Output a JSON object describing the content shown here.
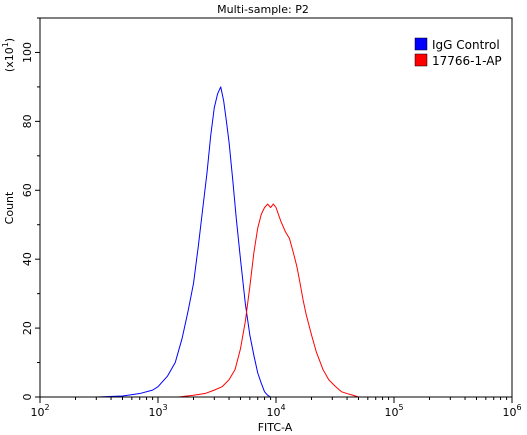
{
  "chart_data": {
    "type": "line",
    "title": "Multi-sample: P2",
    "xlabel": "FITC-A",
    "ylabel": "Count",
    "y_multiplier": "(x10",
    "y_multiplier_exp": "1",
    "y_multiplier_close": ")",
    "x_scale": "log",
    "xlim": [
      100,
      1000000
    ],
    "ylim": [
      0,
      110
    ],
    "x_ticks": [
      {
        "value": 100,
        "base": "10",
        "exp": "2"
      },
      {
        "value": 1000,
        "base": "10",
        "exp": "3"
      },
      {
        "value": 10000,
        "base": "10",
        "exp": "4"
      },
      {
        "value": 100000,
        "base": "10",
        "exp": "5"
      },
      {
        "value": 1000000,
        "base": "10",
        "exp": "6"
      }
    ],
    "y_ticks": [
      {
        "value": 0,
        "label": "0"
      },
      {
        "value": 20,
        "label": "20"
      },
      {
        "value": 40,
        "label": "40"
      },
      {
        "value": 60,
        "label": "60"
      },
      {
        "value": 80,
        "label": "80"
      },
      {
        "value": 100,
        "label": "100"
      }
    ],
    "legend_position": "top-right",
    "series": [
      {
        "name": "IgG Control",
        "color": "#0000ff",
        "points": [
          [
            300,
            0
          ],
          [
            500,
            0.3
          ],
          [
            700,
            1
          ],
          [
            900,
            2
          ],
          [
            1000,
            3
          ],
          [
            1200,
            6
          ],
          [
            1400,
            10
          ],
          [
            1600,
            17
          ],
          [
            1800,
            25
          ],
          [
            2000,
            33
          ],
          [
            2200,
            44
          ],
          [
            2400,
            55
          ],
          [
            2600,
            65
          ],
          [
            2800,
            76
          ],
          [
            3000,
            84
          ],
          [
            3200,
            88
          ],
          [
            3400,
            90
          ],
          [
            3600,
            86
          ],
          [
            3800,
            80
          ],
          [
            4000,
            74
          ],
          [
            4300,
            63
          ],
          [
            4600,
            52
          ],
          [
            5000,
            40
          ],
          [
            5500,
            27
          ],
          [
            6000,
            18
          ],
          [
            6500,
            12
          ],
          [
            7000,
            7
          ],
          [
            7500,
            4
          ],
          [
            8000,
            1.5
          ],
          [
            8500,
            0.5
          ],
          [
            9000,
            0
          ]
        ]
      },
      {
        "name": "17766-1-AP",
        "color": "#ff0000",
        "points": [
          [
            1500,
            0
          ],
          [
            2000,
            0.5
          ],
          [
            2500,
            1
          ],
          [
            3000,
            2
          ],
          [
            3500,
            3
          ],
          [
            4000,
            5
          ],
          [
            4500,
            8
          ],
          [
            5000,
            14
          ],
          [
            5500,
            22
          ],
          [
            6000,
            32
          ],
          [
            6500,
            42
          ],
          [
            7000,
            49
          ],
          [
            7500,
            53
          ],
          [
            8000,
            55
          ],
          [
            8500,
            56
          ],
          [
            9000,
            55
          ],
          [
            9500,
            56
          ],
          [
            10000,
            55
          ],
          [
            11000,
            51
          ],
          [
            12000,
            48
          ],
          [
            13000,
            46
          ],
          [
            14000,
            42
          ],
          [
            15000,
            38
          ],
          [
            16000,
            33
          ],
          [
            17000,
            28
          ],
          [
            18000,
            24
          ],
          [
            20000,
            18
          ],
          [
            22000,
            13
          ],
          [
            25000,
            8
          ],
          [
            28000,
            5
          ],
          [
            32000,
            3
          ],
          [
            36000,
            1.5
          ],
          [
            40000,
            1
          ],
          [
            45000,
            0.5
          ],
          [
            50000,
            0
          ]
        ]
      }
    ]
  }
}
